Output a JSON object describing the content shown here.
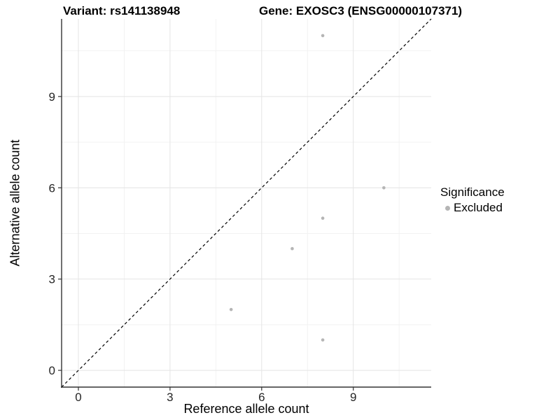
{
  "header": {
    "variant_title": "Variant: rs141138948",
    "gene_title": "Gene: EXOSC3 (ENSG00000107371)"
  },
  "chart_data": {
    "type": "scatter",
    "xlabel": "Reference allele count",
    "ylabel": "Alternative allele count",
    "xlim": [
      -0.55,
      11.55
    ],
    "ylim": [
      -0.55,
      11.55
    ],
    "xticks": [
      0,
      3,
      6,
      9
    ],
    "yticks": [
      0,
      3,
      6,
      9
    ],
    "xminor": [
      1.5,
      4.5,
      7.5,
      10.5
    ],
    "yminor": [
      1.5,
      4.5,
      7.5,
      10.5
    ],
    "grid": true,
    "identity_line": {
      "type": "y=x",
      "style": "dashed",
      "color": "#000000"
    },
    "series": [
      {
        "name": "Excluded",
        "color": "#b5b5b5",
        "points": [
          [
            8,
            11
          ],
          [
            10,
            6
          ],
          [
            8,
            5
          ],
          [
            7,
            4
          ],
          [
            5,
            2
          ],
          [
            8,
            1
          ]
        ]
      }
    ],
    "legend": {
      "title": "Significance",
      "position": "right",
      "entries": [
        {
          "label": "Excluded",
          "color": "#b5b5b5"
        }
      ]
    },
    "style": {
      "grid_major": "#e4e4e4",
      "grid_minor": "#f1f1f1",
      "axis_line": "#333333",
      "tick_color": "#333333",
      "tick_label_color": "#262626",
      "point_radius": 2.3
    }
  }
}
